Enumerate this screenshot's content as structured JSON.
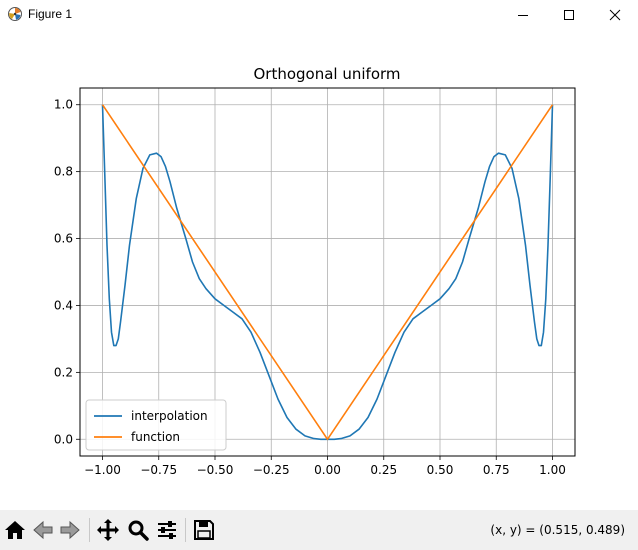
{
  "window": {
    "title": "Figure 1",
    "icons": {
      "app": "matplotlib-figure-icon",
      "minimize": "minimize-icon",
      "maximize": "maximize-icon",
      "close": "close-icon"
    }
  },
  "toolbar": {
    "buttons": [
      {
        "name": "home",
        "icon": "home-icon"
      },
      {
        "name": "back",
        "icon": "back-arrow-icon"
      },
      {
        "name": "forward",
        "icon": "forward-arrow-icon"
      },
      {
        "name": "pan",
        "icon": "pan-move-icon"
      },
      {
        "name": "zoom",
        "icon": "zoom-magnifier-icon"
      },
      {
        "name": "configure-subplots",
        "icon": "sliders-icon"
      },
      {
        "name": "save",
        "icon": "floppy-disk-icon"
      }
    ],
    "coords": "(x, y) = (0.515, 0.489)"
  },
  "chart_data": {
    "type": "line",
    "title": "Orthogonal uniform",
    "xlabel": "",
    "ylabel": "",
    "xlim": [
      -1.1,
      1.1
    ],
    "ylim": [
      -0.05,
      1.05
    ],
    "xticks": [
      -1.0,
      -0.75,
      -0.5,
      -0.25,
      0.0,
      0.25,
      0.5,
      0.75,
      1.0
    ],
    "xtick_labels": [
      "−1.00",
      "−0.75",
      "−0.50",
      "−0.25",
      "0.00",
      "0.25",
      "0.50",
      "0.75",
      "1.00"
    ],
    "yticks": [
      0.0,
      0.2,
      0.4,
      0.6,
      0.8,
      1.0
    ],
    "ytick_labels": [
      "0.0",
      "0.2",
      "0.4",
      "0.6",
      "0.8",
      "1.0"
    ],
    "grid": true,
    "legend": "lower-left",
    "series": [
      {
        "name": "interpolation",
        "color": "#1f77b4",
        "x": [
          -1.0,
          -0.99,
          -0.98,
          -0.97,
          -0.96,
          -0.95,
          -0.94,
          -0.93,
          -0.92,
          -0.9,
          -0.88,
          -0.85,
          -0.82,
          -0.79,
          -0.76,
          -0.74,
          -0.72,
          -0.7,
          -0.67,
          -0.63,
          -0.6,
          -0.57,
          -0.54,
          -0.5,
          -0.46,
          -0.42,
          -0.38,
          -0.34,
          -0.3,
          -0.26,
          -0.22,
          -0.18,
          -0.14,
          -0.1,
          -0.06,
          -0.03,
          0.0,
          0.03,
          0.06,
          0.1,
          0.14,
          0.18,
          0.22,
          0.26,
          0.3,
          0.34,
          0.38,
          0.42,
          0.46,
          0.5,
          0.54,
          0.57,
          0.6,
          0.63,
          0.67,
          0.7,
          0.72,
          0.74,
          0.76,
          0.79,
          0.82,
          0.85,
          0.88,
          0.9,
          0.92,
          0.93,
          0.94,
          0.95,
          0.96,
          0.97,
          0.98,
          0.99,
          1.0
        ],
        "y": [
          1.0,
          0.79,
          0.58,
          0.42,
          0.32,
          0.28,
          0.28,
          0.3,
          0.35,
          0.46,
          0.58,
          0.72,
          0.81,
          0.85,
          0.855,
          0.845,
          0.815,
          0.77,
          0.69,
          0.6,
          0.53,
          0.48,
          0.45,
          0.42,
          0.4,
          0.38,
          0.36,
          0.32,
          0.26,
          0.19,
          0.12,
          0.065,
          0.03,
          0.01,
          0.002,
          0.0,
          0.0,
          0.0,
          0.002,
          0.01,
          0.03,
          0.065,
          0.12,
          0.19,
          0.26,
          0.32,
          0.36,
          0.38,
          0.4,
          0.42,
          0.45,
          0.48,
          0.53,
          0.6,
          0.69,
          0.77,
          0.815,
          0.845,
          0.855,
          0.85,
          0.81,
          0.72,
          0.58,
          0.46,
          0.35,
          0.3,
          0.28,
          0.28,
          0.32,
          0.42,
          0.58,
          0.79,
          1.0
        ]
      },
      {
        "name": "function",
        "color": "#ff7f0e",
        "x": [
          -1.0,
          0.0,
          1.0
        ],
        "y": [
          1.0,
          0.0,
          1.0
        ]
      }
    ]
  }
}
